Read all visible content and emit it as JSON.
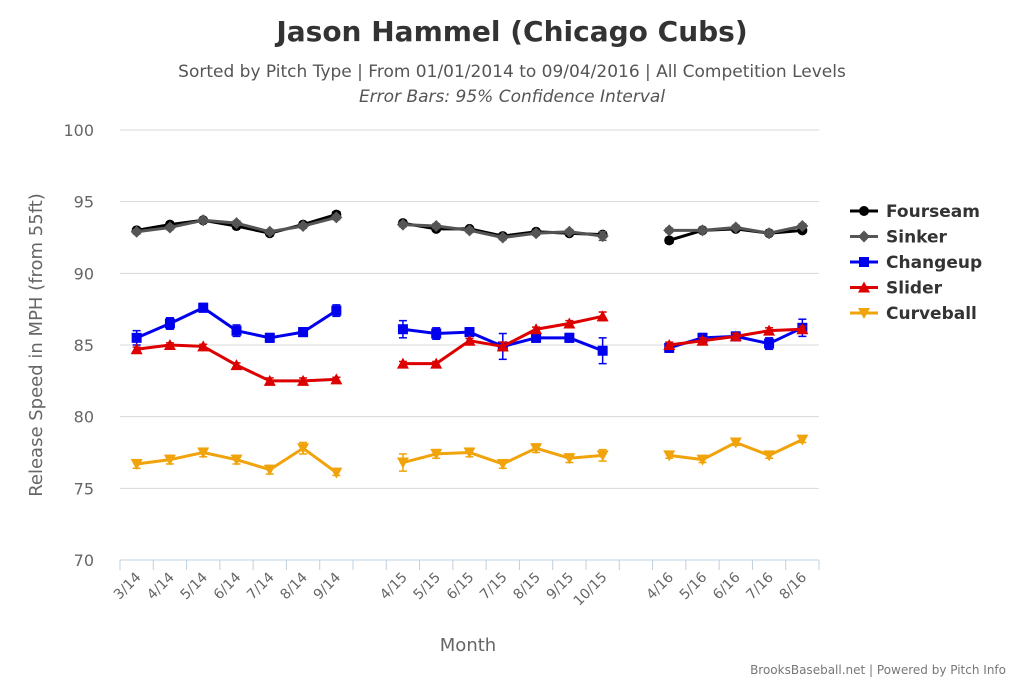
{
  "chart_data": {
    "type": "line",
    "title": "Jason Hammel (Chicago Cubs)",
    "subtitle": "Sorted by Pitch Type | From 01/01/2014 to 09/04/2016 | All Competition Levels",
    "note": "Error Bars: 95% Confidence Interval",
    "xlabel": "Month",
    "ylabel": "Release Speed in MPH (from 55ft)",
    "ylim": [
      70,
      100
    ],
    "yticks": [
      70,
      75,
      80,
      85,
      90,
      95,
      100
    ],
    "grid": true,
    "legend_position": "right",
    "credit": "BrooksBaseball.net | Powered by Pitch Info",
    "categories": [
      "3/14",
      "4/14",
      "5/14",
      "6/14",
      "7/14",
      "8/14",
      "9/14",
      "",
      "4/15",
      "5/15",
      "6/15",
      "7/15",
      "8/15",
      "9/15",
      "10/15",
      "",
      "4/16",
      "5/16",
      "6/16",
      "7/16",
      "8/16"
    ],
    "series": [
      {
        "name": "Fourseam",
        "color": "#000000",
        "marker": "circle",
        "values": [
          93.0,
          93.4,
          93.7,
          93.3,
          92.8,
          93.4,
          94.1,
          null,
          93.5,
          93.1,
          93.1,
          92.6,
          92.9,
          92.8,
          92.7,
          null,
          92.3,
          93.0,
          93.1,
          92.8,
          93.0
        ],
        "errors": [
          0.15,
          0.15,
          0.15,
          0.15,
          0.15,
          0.15,
          0.2,
          null,
          0.15,
          0.15,
          0.15,
          0.15,
          0.15,
          0.15,
          0.2,
          null,
          0.2,
          0.15,
          0.15,
          0.15,
          0.15
        ]
      },
      {
        "name": "Sinker",
        "color": "#555555",
        "marker": "diamond",
        "values": [
          92.9,
          93.2,
          93.7,
          93.5,
          92.9,
          93.3,
          93.9,
          null,
          93.4,
          93.3,
          93.0,
          92.5,
          92.8,
          92.9,
          92.6,
          null,
          93.0,
          93.0,
          93.2,
          92.8,
          93.3
        ],
        "errors": [
          0.15,
          0.15,
          0.15,
          0.15,
          0.15,
          0.15,
          0.15,
          null,
          0.15,
          0.15,
          0.15,
          0.15,
          0.15,
          0.15,
          0.3,
          null,
          0.15,
          0.15,
          0.15,
          0.15,
          0.15
        ]
      },
      {
        "name": "Changeup",
        "color": "#0000ee",
        "marker": "square",
        "values": [
          85.5,
          86.5,
          87.6,
          86.0,
          85.5,
          85.9,
          87.4,
          null,
          86.1,
          85.8,
          85.9,
          84.9,
          85.5,
          85.5,
          84.6,
          null,
          84.8,
          85.5,
          85.6,
          85.1,
          86.2
        ],
        "errors": [
          0.5,
          0.4,
          0.3,
          0.4,
          0.3,
          0.3,
          0.4,
          null,
          0.6,
          0.4,
          0.3,
          0.9,
          0.3,
          0.3,
          0.9,
          null,
          0.3,
          0.3,
          0.3,
          0.4,
          0.6
        ]
      },
      {
        "name": "Slider",
        "color": "#dd0000",
        "marker": "triangle-up",
        "values": [
          84.7,
          85.0,
          84.9,
          83.6,
          82.5,
          82.5,
          82.6,
          null,
          83.7,
          83.7,
          85.3,
          84.9,
          86.1,
          86.5,
          87.0,
          null,
          85.0,
          85.3,
          85.6,
          86.0,
          86.1
        ],
        "errors": [
          0.15,
          0.15,
          0.15,
          0.15,
          0.2,
          0.2,
          0.15,
          null,
          0.15,
          0.15,
          0.15,
          0.3,
          0.15,
          0.2,
          0.3,
          null,
          0.2,
          0.2,
          0.2,
          0.2,
          0.2
        ]
      },
      {
        "name": "Curveball",
        "color": "#f0a30a",
        "marker": "triangle-down",
        "values": [
          76.7,
          77.0,
          77.5,
          77.0,
          76.3,
          77.8,
          76.1,
          null,
          76.8,
          77.4,
          77.5,
          76.7,
          77.8,
          77.1,
          77.3,
          null,
          77.3,
          77.0,
          78.2,
          77.3,
          78.4
        ],
        "errors": [
          0.3,
          0.3,
          0.3,
          0.3,
          0.3,
          0.4,
          0.2,
          null,
          0.6,
          0.3,
          0.3,
          0.3,
          0.3,
          0.3,
          0.4,
          null,
          0.2,
          0.2,
          0.2,
          0.2,
          0.2
        ]
      }
    ]
  }
}
